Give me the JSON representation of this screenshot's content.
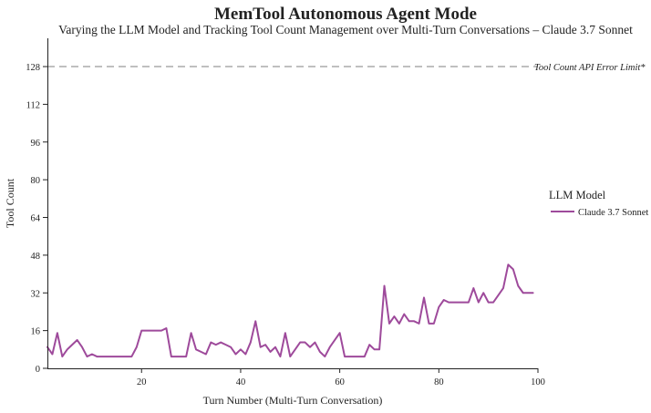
{
  "chart_data": {
    "type": "line",
    "title": "MemTool Autonomous Agent Mode",
    "subtitle": "Varying the LLM Model and Tracking Tool Count Management over Multi-Turn Conversations – Claude 3.7 Sonnet",
    "xlabel": "Turn Number (Multi-Turn Conversation)",
    "ylabel": "Tool Count",
    "xlim": [
      1,
      100
    ],
    "ylim": [
      0,
      140
    ],
    "x_ticks": [
      20,
      40,
      60,
      80,
      100
    ],
    "y_ticks": [
      0,
      16,
      32,
      48,
      64,
      80,
      96,
      112,
      128
    ],
    "grid": false,
    "legend": {
      "title": "LLM Model",
      "position": "right"
    },
    "reference_line": {
      "y": 128,
      "label": "Tool Count API Error Limit*",
      "color": "#aaaaaa"
    },
    "series": [
      {
        "name": "Claude 3.7 Sonnet",
        "color": "#9e4a9b",
        "x": [
          1,
          2,
          3,
          4,
          5,
          6,
          7,
          8,
          9,
          10,
          11,
          12,
          13,
          14,
          15,
          16,
          17,
          18,
          19,
          20,
          21,
          22,
          23,
          24,
          25,
          26,
          27,
          28,
          29,
          30,
          31,
          32,
          33,
          34,
          35,
          36,
          37,
          38,
          39,
          40,
          41,
          42,
          43,
          44,
          45,
          46,
          47,
          48,
          49,
          50,
          51,
          52,
          53,
          54,
          55,
          56,
          57,
          58,
          59,
          60,
          61,
          62,
          63,
          64,
          65,
          66,
          67,
          68,
          69,
          70,
          71,
          72,
          73,
          74,
          75,
          76,
          77,
          78,
          79,
          80,
          81,
          82,
          83,
          84,
          85,
          86,
          87,
          88,
          89,
          90,
          91,
          92,
          93,
          94,
          95,
          96,
          97,
          98,
          99
        ],
        "values": [
          9,
          6,
          15,
          5,
          8,
          10,
          12,
          9,
          5,
          6,
          5,
          5,
          5,
          5,
          5,
          5,
          5,
          5,
          9,
          16,
          16,
          16,
          16,
          16,
          17,
          5,
          5,
          5,
          5,
          15,
          8,
          7,
          6,
          11,
          10,
          11,
          10,
          9,
          6,
          8,
          6,
          11,
          20,
          9,
          10,
          7,
          9,
          5,
          15,
          5,
          8,
          11,
          11,
          9,
          11,
          7,
          5,
          9,
          12,
          15,
          5,
          5,
          5,
          5,
          5,
          10,
          8,
          8,
          35,
          19,
          22,
          19,
          23,
          20,
          20,
          19,
          30,
          19,
          19,
          26,
          29,
          28,
          28,
          28,
          28,
          28,
          34,
          28,
          32,
          28,
          28,
          31,
          34,
          44,
          42,
          35,
          32,
          32,
          32
        ]
      }
    ]
  }
}
